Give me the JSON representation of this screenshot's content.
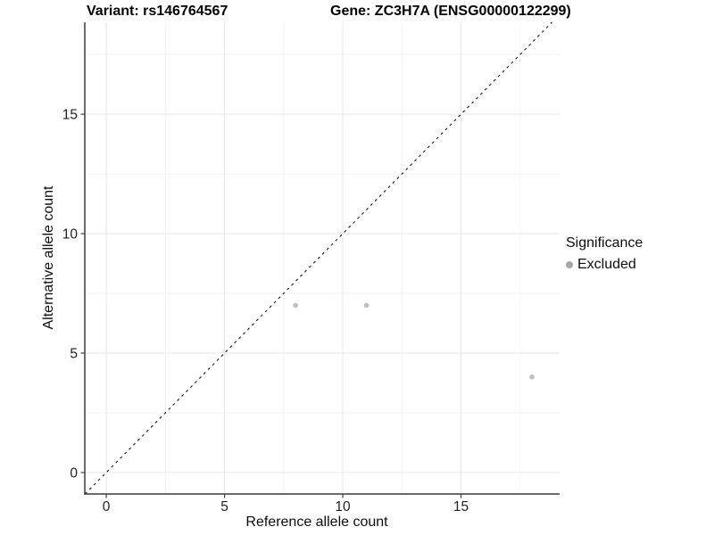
{
  "header": {
    "variant_title": "Variant: rs146764567",
    "gene_title": "Gene: ZC3H7A (ENSG00000122299)"
  },
  "chart_data": {
    "type": "scatter",
    "title_left": "Variant: rs146764567",
    "title_right": "Gene: ZC3H7A (ENSG00000122299)",
    "xlabel": "Reference allele count",
    "ylabel": "Alternative allele count",
    "xlim": [
      -0.91,
      19.17
    ],
    "ylim": [
      -0.9,
      18.85
    ],
    "x_ticks": [
      0,
      5,
      10,
      15
    ],
    "y_ticks": [
      0,
      5,
      10,
      15
    ],
    "x_minor_ticks": [
      2.5,
      7.5,
      12.5,
      17.5
    ],
    "y_minor_ticks": [
      2.5,
      7.5,
      12.5,
      17.5
    ],
    "grid": true,
    "series": [
      {
        "name": "Excluded",
        "color": "#bfbfbf",
        "points": [
          {
            "x": 8,
            "y": 7
          },
          {
            "x": 11,
            "y": 7
          },
          {
            "x": 18,
            "y": 4
          }
        ]
      }
    ],
    "reference_line": {
      "slope": 1,
      "intercept": 0,
      "style": "dashed",
      "color": "#000000"
    },
    "legend": {
      "title": "Significance",
      "position": "right",
      "entries": [
        {
          "label": "Excluded",
          "color": "#a9a9a9"
        }
      ]
    },
    "style": {
      "grid_major_color": "#e7e7e7",
      "grid_minor_color": "#f2f2f2",
      "axis_line_color": "#3c3c3c",
      "tick_color": "#3c3c3c",
      "tick_label_color": "#1f1f1f",
      "background": "#ffffff"
    }
  }
}
